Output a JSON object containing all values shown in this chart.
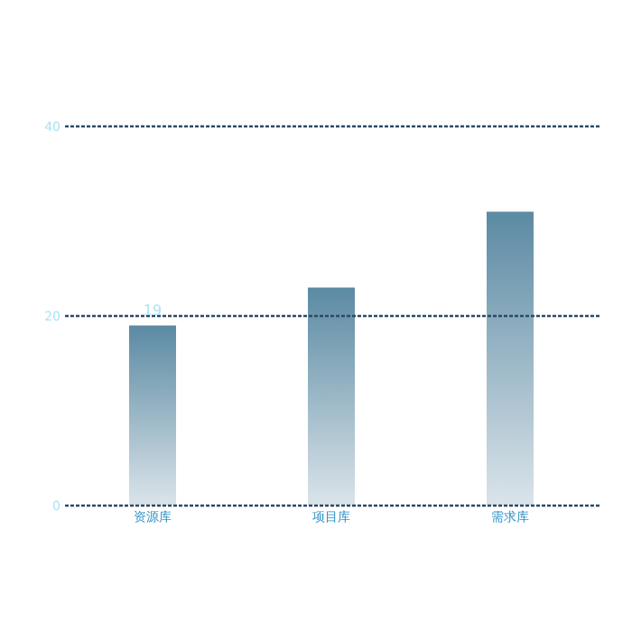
{
  "chart_data": {
    "type": "bar",
    "categories": [
      "资源库",
      "项目库",
      "需求库"
    ],
    "values": [
      19,
      23,
      31
    ],
    "value_labels": [
      "19",
      null,
      null
    ],
    "color": "#5b8aa3",
    "ylim": [
      0,
      40
    ],
    "yticks": [
      0,
      20,
      40
    ],
    "ref_lines": [
      {
        "axis": "y",
        "value": 0,
        "color": "#2c4a66",
        "line_style": "dotted"
      },
      {
        "axis": "y",
        "value": 20,
        "color": "#2c4a66",
        "line_style": "dotted"
      },
      {
        "axis": "y",
        "value": 40,
        "color": "#2c4a66",
        "line_style": "dotted"
      }
    ]
  }
}
